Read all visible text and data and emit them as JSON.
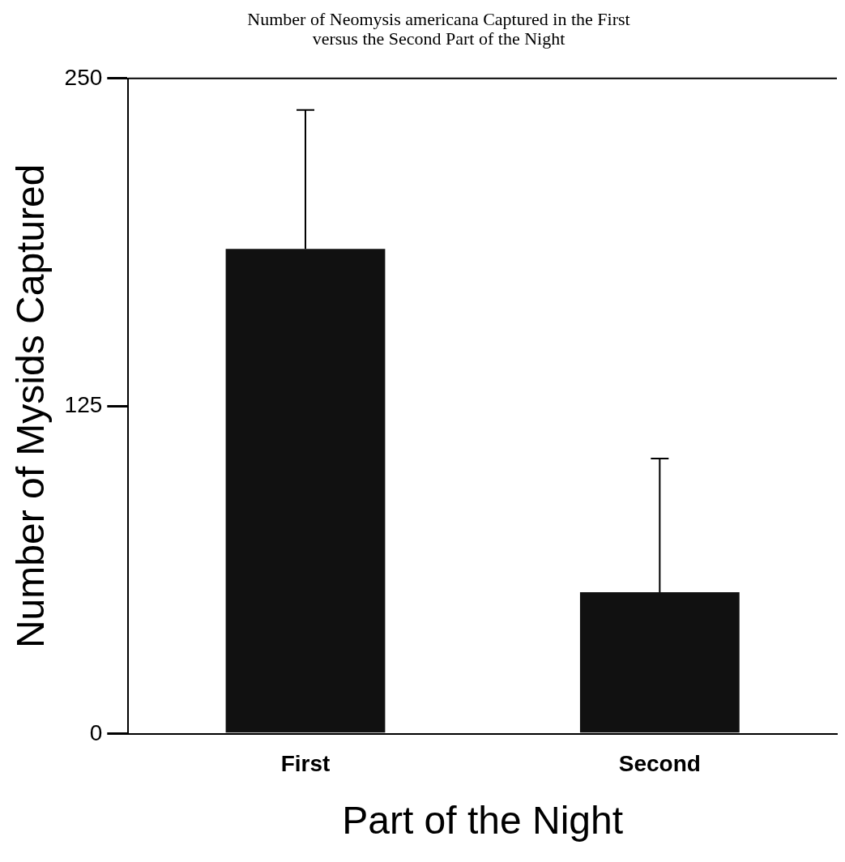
{
  "chart_data": {
    "type": "bar",
    "title": "Number of Neomysis americana Captured in the First versus the Second Part of the Night",
    "xlabel": "Part of the Night",
    "ylabel": "Number of Mysids Captured",
    "categories": [
      "First",
      "Second"
    ],
    "values": [
      185,
      54
    ],
    "errors": [
      [
        185,
        238
      ],
      [
        54,
        105
      ]
    ],
    "color": "#111111",
    "ylim": [
      0,
      250
    ],
    "yticks": [
      0,
      125,
      250
    ],
    "grid": false,
    "legend": false
  }
}
